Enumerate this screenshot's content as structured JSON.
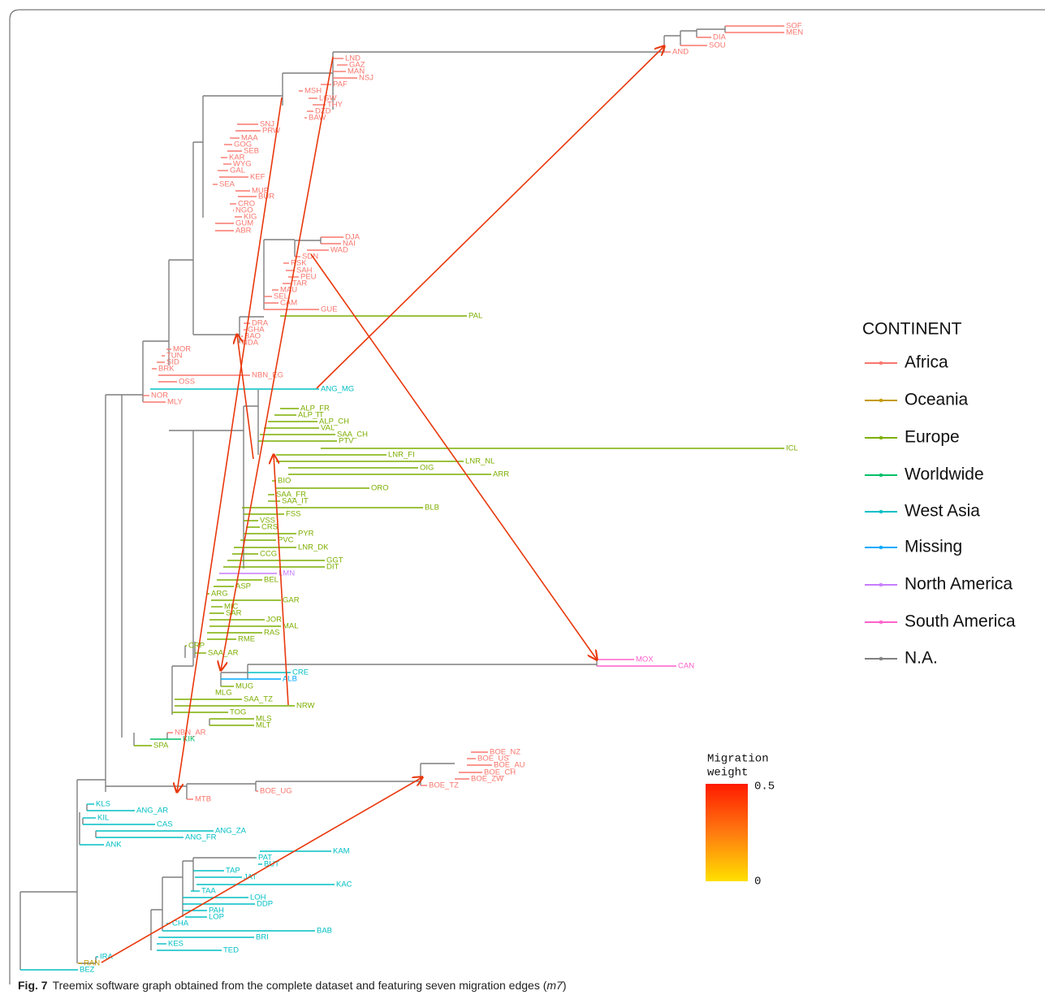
{
  "legend": {
    "title": "CONTINENT",
    "groups": [
      {
        "name": "Africa",
        "color": "#f8766d",
        "leaves": [
          "SOF",
          "MEN",
          "DIA",
          "SOU",
          "AND",
          "LND",
          "GAZ",
          "MAN",
          "NSJ",
          "PAF",
          "MSH",
          "LGW",
          "THY",
          "DZD",
          "BAW",
          "SNJ",
          "PRW",
          "MAA",
          "GOG",
          "SEB",
          "KAR",
          "WYG",
          "GAL",
          "KEF",
          "SEA",
          "MUB",
          "BUR",
          "CRO",
          "NGO",
          "KIG",
          "GUM",
          "ABR",
          "DJA",
          "NAI",
          "WAD",
          "SDN",
          "RSK",
          "SAH",
          "PEU",
          "TAR",
          "MAU",
          "SEL",
          "CAM",
          "GUE",
          "DRA",
          "GHA",
          "BAO",
          "NDA",
          "MOR",
          "TUN",
          "SID",
          "BRK",
          "NBN_EG",
          "OSS",
          "NOR",
          "MLY",
          "NBN_AR",
          "MTB",
          "BOE_UG",
          "BOE_NZ",
          "BOE_US",
          "BOE_AU",
          "BOE_CH",
          "BOE_ZW",
          "BOE_TZ"
        ]
      },
      {
        "name": "Oceania",
        "color": "#c49a00",
        "leaves": [
          "RAN"
        ]
      },
      {
        "name": "Europe",
        "color": "#7cae00",
        "leaves": [
          "PAL",
          "ALP_FR",
          "ALP_IT",
          "ALP_CH",
          "VAL",
          "SAA_CH",
          "PTV",
          "ICL",
          "LNR_FI",
          "LNR_NL",
          "OIG",
          "ARR",
          "BIO",
          "ORO",
          "SAA_FR",
          "SAA_IT",
          "BLB",
          "FSS",
          "VSS",
          "CRS",
          "PYR",
          "PVC",
          "LNR_DK",
          "CCG",
          "GGT",
          "DIT",
          "BEL",
          "ASP",
          "ARG",
          "GAR",
          "MIC",
          "SAR",
          "JOR",
          "MAL",
          "RAS",
          "RME",
          "CRP",
          "SAA_AR",
          "MUG",
          "MLG",
          "SAA_TZ",
          "NRW",
          "TOG",
          "MLS",
          "MLT",
          "SPA"
        ]
      },
      {
        "name": "Worldwide",
        "color": "#00be67",
        "leaves": [
          "KIK"
        ]
      },
      {
        "name": "West Asia",
        "color": "#00bfc4",
        "leaves": [
          "ANG_MG",
          "KLS",
          "ANG_AR",
          "KIL",
          "CAS",
          "ANG_ZA",
          "ANG_FR",
          "ANK",
          "KAM",
          "PAT",
          "BUT",
          "TAP",
          "JAT",
          "KAC",
          "TAA",
          "LOH",
          "DDP",
          "PAH",
          "LOP",
          "CHA",
          "BAB",
          "BRI",
          "KES",
          "TED",
          "IRA",
          "BEZ",
          "CRE"
        ]
      },
      {
        "name": "Missing",
        "color": "#00a9ff",
        "leaves": [
          "ALB"
        ]
      },
      {
        "name": "North America",
        "color": "#c77cff",
        "leaves": [
          "LMN"
        ]
      },
      {
        "name": "South America",
        "color": "#ff61cc",
        "leaves": [
          "MOX",
          "CAN"
        ]
      },
      {
        "name": "N.A.",
        "color": "#7f7f7f",
        "leaves": []
      }
    ]
  },
  "colorbar": {
    "title": [
      "Migration",
      "weight"
    ],
    "ticks": [
      0,
      0.5
    ]
  },
  "caption": {
    "label": "Fig. 7",
    "parts": [
      "Treemix software graph obtained from the complete dataset and featuring seven migration edges (",
      "m7",
      ")"
    ]
  }
}
